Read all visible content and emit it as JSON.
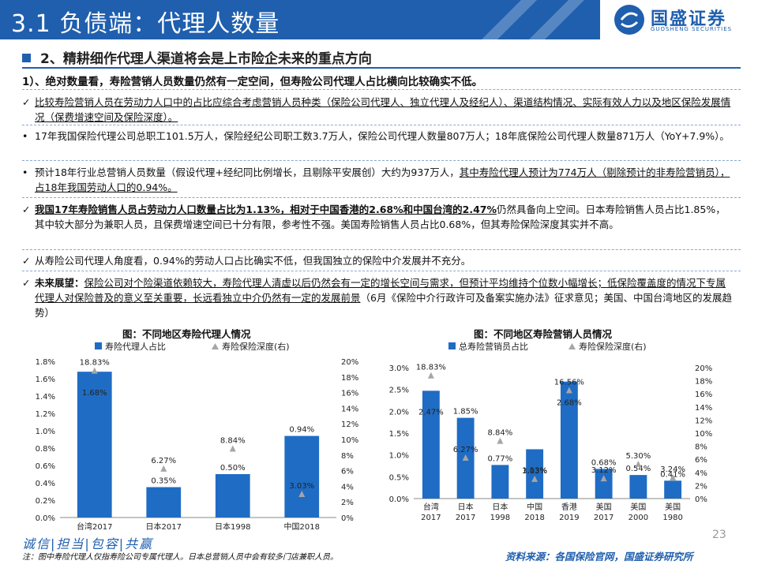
{
  "header": {
    "title": "3.1 负债端：代理人数量",
    "logo_cn": "国盛证券",
    "logo_en": "GUOSHENG SECURITIES"
  },
  "headline": "2、精耕细作代理人渠道将会是上市险企未来的重点方向",
  "point1": "1）、绝对数量看，寿险营销人员数量仍然有一定空间，但寿险公司代理人占比横向比较确实不低。",
  "bullets": [
    {
      "marker": "✓",
      "text": "比较寿险营销人员在劳动力人口中的占比应综合考虑营销人员种类（保险公司代理人、独立代理人及经纪人）、渠道结构情况、实际有效人力以及地区保险发展情况（保费增速空间及保险深度）。"
    },
    {
      "marker": "•",
      "text": "17年我国保险代理公司总职工101.5万人，保险经纪公司职工数3.7万人，保险公司代理人数量807万人；18年底保险公司代理人数量871万人（YoY+7.9%）。"
    },
    {
      "marker": "•",
      "text_a": "预计18年行业总营销人员数量（假设代理+经纪同比例增长，且剔除平安展创）大约为937万人，",
      "text_b": "其中寿险代理人预计为774万人（剔除预计的非寿险营销员），占18年我国劳动人口的0.94%。"
    },
    {
      "marker": "✓",
      "text_a": "我国17年寿险销售人员占劳动力人口数量占比为1.13%，相对于中国香港的2.68%和中国台湾的2.47%",
      "text_b": "仍然具备向上空间。日本寿险销售人员占比1.85%，其中较大部分为兼职人员，且保费增速空间已十分有限，参考性不强。美国寿险销售人员占比0.68%，但其寿险保险深度其实并不高。"
    },
    {
      "marker": "✓",
      "text": "从寿险公司代理人角度看，0.94%的劳动人口占比确实不低，但我国独立的保险中介发展并不充分。"
    },
    {
      "marker": "✓",
      "label": "未来展望：",
      "text_a": "保险公司对个险渠道依赖较大，寿险代理人清虚以后仍然会有一定的增长空间与需求，但预计平均维持个位数小幅增长；低保险覆盖度的情况下专属代理人对保险普及的意义至关重要，长远看独立中介仍然有一定的发展前景",
      "text_b": "（6月《保险中介行政许可及备案实施办法》征求意见；美国、中国台湾地区的发展趋势）"
    }
  ],
  "chart_data": [
    {
      "type": "bar",
      "title": "图：不同地区寿险代理人情况",
      "categories": [
        "台湾2017",
        "日本2017",
        "日本1998",
        "中国2018"
      ],
      "series": [
        {
          "name": "寿险代理人占比",
          "type": "bar",
          "axis": "left",
          "values": [
            1.68,
            0.35,
            0.5,
            0.94
          ],
          "labels": [
            "1.68%",
            "0.35%",
            "0.50%",
            "0.94%"
          ],
          "color": "#1f6cc4"
        },
        {
          "name": "寿险保险深度(右)",
          "type": "scatter",
          "axis": "right",
          "values": [
            18.83,
            6.27,
            8.84,
            3.03
          ],
          "labels": [
            "18.83%",
            "6.27%",
            "8.84%",
            "3.03%"
          ],
          "color": "#a6a6a6"
        }
      ],
      "y_left": {
        "min": 0,
        "max": 1.8,
        "ticks": [
          "0.0%",
          "0.2%",
          "0.4%",
          "0.6%",
          "0.8%",
          "1.0%",
          "1.2%",
          "1.4%",
          "1.6%",
          "1.8%"
        ]
      },
      "y_right": {
        "min": 0,
        "max": 20,
        "ticks": [
          "0%",
          "2%",
          "4%",
          "6%",
          "8%",
          "10%",
          "12%",
          "14%",
          "16%",
          "18%",
          "20%"
        ]
      },
      "legend": "top"
    },
    {
      "type": "bar",
      "title": "图：不同地区寿险营销人员情况",
      "categories": [
        [
          "台湾",
          "2017"
        ],
        [
          "日本",
          "2017"
        ],
        [
          "日本",
          "1998"
        ],
        [
          "中国",
          "2018"
        ],
        [
          "香港",
          "2019"
        ],
        [
          "美国",
          "2017"
        ],
        [
          "美国",
          "2000"
        ],
        [
          "美国",
          "1980"
        ]
      ],
      "series": [
        {
          "name": "总寿险营销员占比",
          "type": "bar",
          "axis": "left",
          "values": [
            2.47,
            1.85,
            0.77,
            1.13,
            2.68,
            0.68,
            0.54,
            0.41
          ],
          "labels": [
            "2.47%",
            "1.85%",
            "0.77%",
            "1.13%",
            "2.68%",
            "0.68%",
            "0.54%",
            "0.41%"
          ],
          "color": "#1f6cc4"
        },
        {
          "name": "寿险保险深度(右)",
          "type": "scatter",
          "axis": "right",
          "values": [
            18.83,
            6.27,
            8.84,
            3.03,
            16.56,
            3.12,
            5.3,
            3.24
          ],
          "labels": [
            "18.83%",
            "6.27%",
            "8.84%",
            "3.03%",
            "16.56%",
            "3.12%",
            "5.30%",
            "3.24%"
          ],
          "color": "#a6a6a6"
        }
      ],
      "y_left": {
        "min": 0,
        "max": 3.0,
        "ticks": [
          "0.0%",
          "0.5%",
          "1.0%",
          "1.5%",
          "2.0%",
          "2.5%",
          "3.0%"
        ]
      },
      "y_right": {
        "min": 0,
        "max": 20,
        "ticks": [
          "0%",
          "2%",
          "4%",
          "6%",
          "8%",
          "10%",
          "12%",
          "14%",
          "16%",
          "18%",
          "20%"
        ]
      },
      "legend": "top"
    }
  ],
  "footer": {
    "slogan": "诚信|担当|包容|共赢",
    "note": "注：图中寿险代理人仅指寿险公司专属代理人。日本总营销人员中会有较多门店兼职人员。",
    "source": "资料来源：各国保险官网，国盛证券研究所",
    "page": "23"
  }
}
